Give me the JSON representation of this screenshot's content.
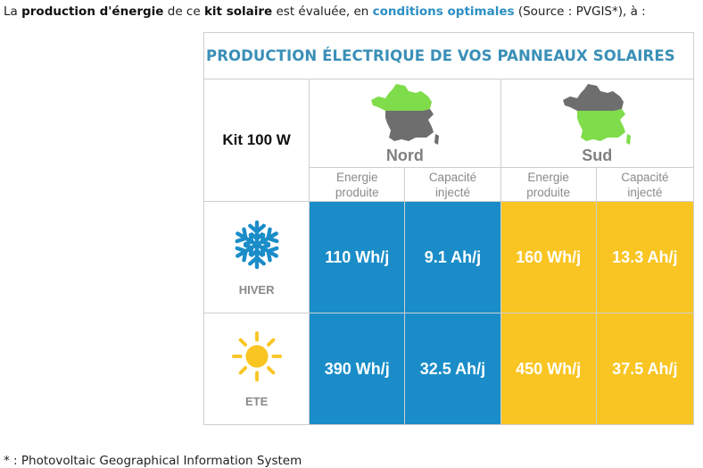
{
  "intro": {
    "part1": "La ",
    "bold1": "production d'énergie",
    "part2": " de ce ",
    "bold2": "kit solaire",
    "part3": " est évaluée, en ",
    "highlight": "conditions optimales",
    "part4": " (Source : PVGIS*), à :"
  },
  "table": {
    "title": "PRODUCTION ÉLECTRIQUE DE VOS PANNEAUX SOLAIRES",
    "kit_label": "Kit 100 W",
    "regions": [
      {
        "name": "Nord",
        "highlight_color": "#7fdc4a"
      },
      {
        "name": "Sud",
        "highlight_color": "#7fdc4a"
      }
    ],
    "sub_headers": [
      {
        "line1": "Energie",
        "line2": "produite"
      },
      {
        "line1": "Capacité",
        "line2": "injecté"
      },
      {
        "line1": "Energie",
        "line2": "produite"
      },
      {
        "line1": "Capacité",
        "line2": "injecté"
      }
    ],
    "rows": [
      {
        "season": "HIVER",
        "icon": "snowflake-icon",
        "values": [
          "110 Wh/j",
          "9.1 Ah/j",
          "160 Wh/j",
          "13.3 Ah/j"
        ]
      },
      {
        "season": "ETE",
        "icon": "sun-icon",
        "values": [
          "390 Wh/j",
          "32.5 Ah/j",
          "450 Wh/j",
          "37.5 Ah/j"
        ]
      }
    ],
    "colors": {
      "nord": "#1a8dc8",
      "sud": "#f9c522",
      "title": "#3a8fb7",
      "snow": "#1a8dc8",
      "sun": "#f9c522"
    }
  },
  "footnote": "* : Photovoltaic Geographical Information System"
}
